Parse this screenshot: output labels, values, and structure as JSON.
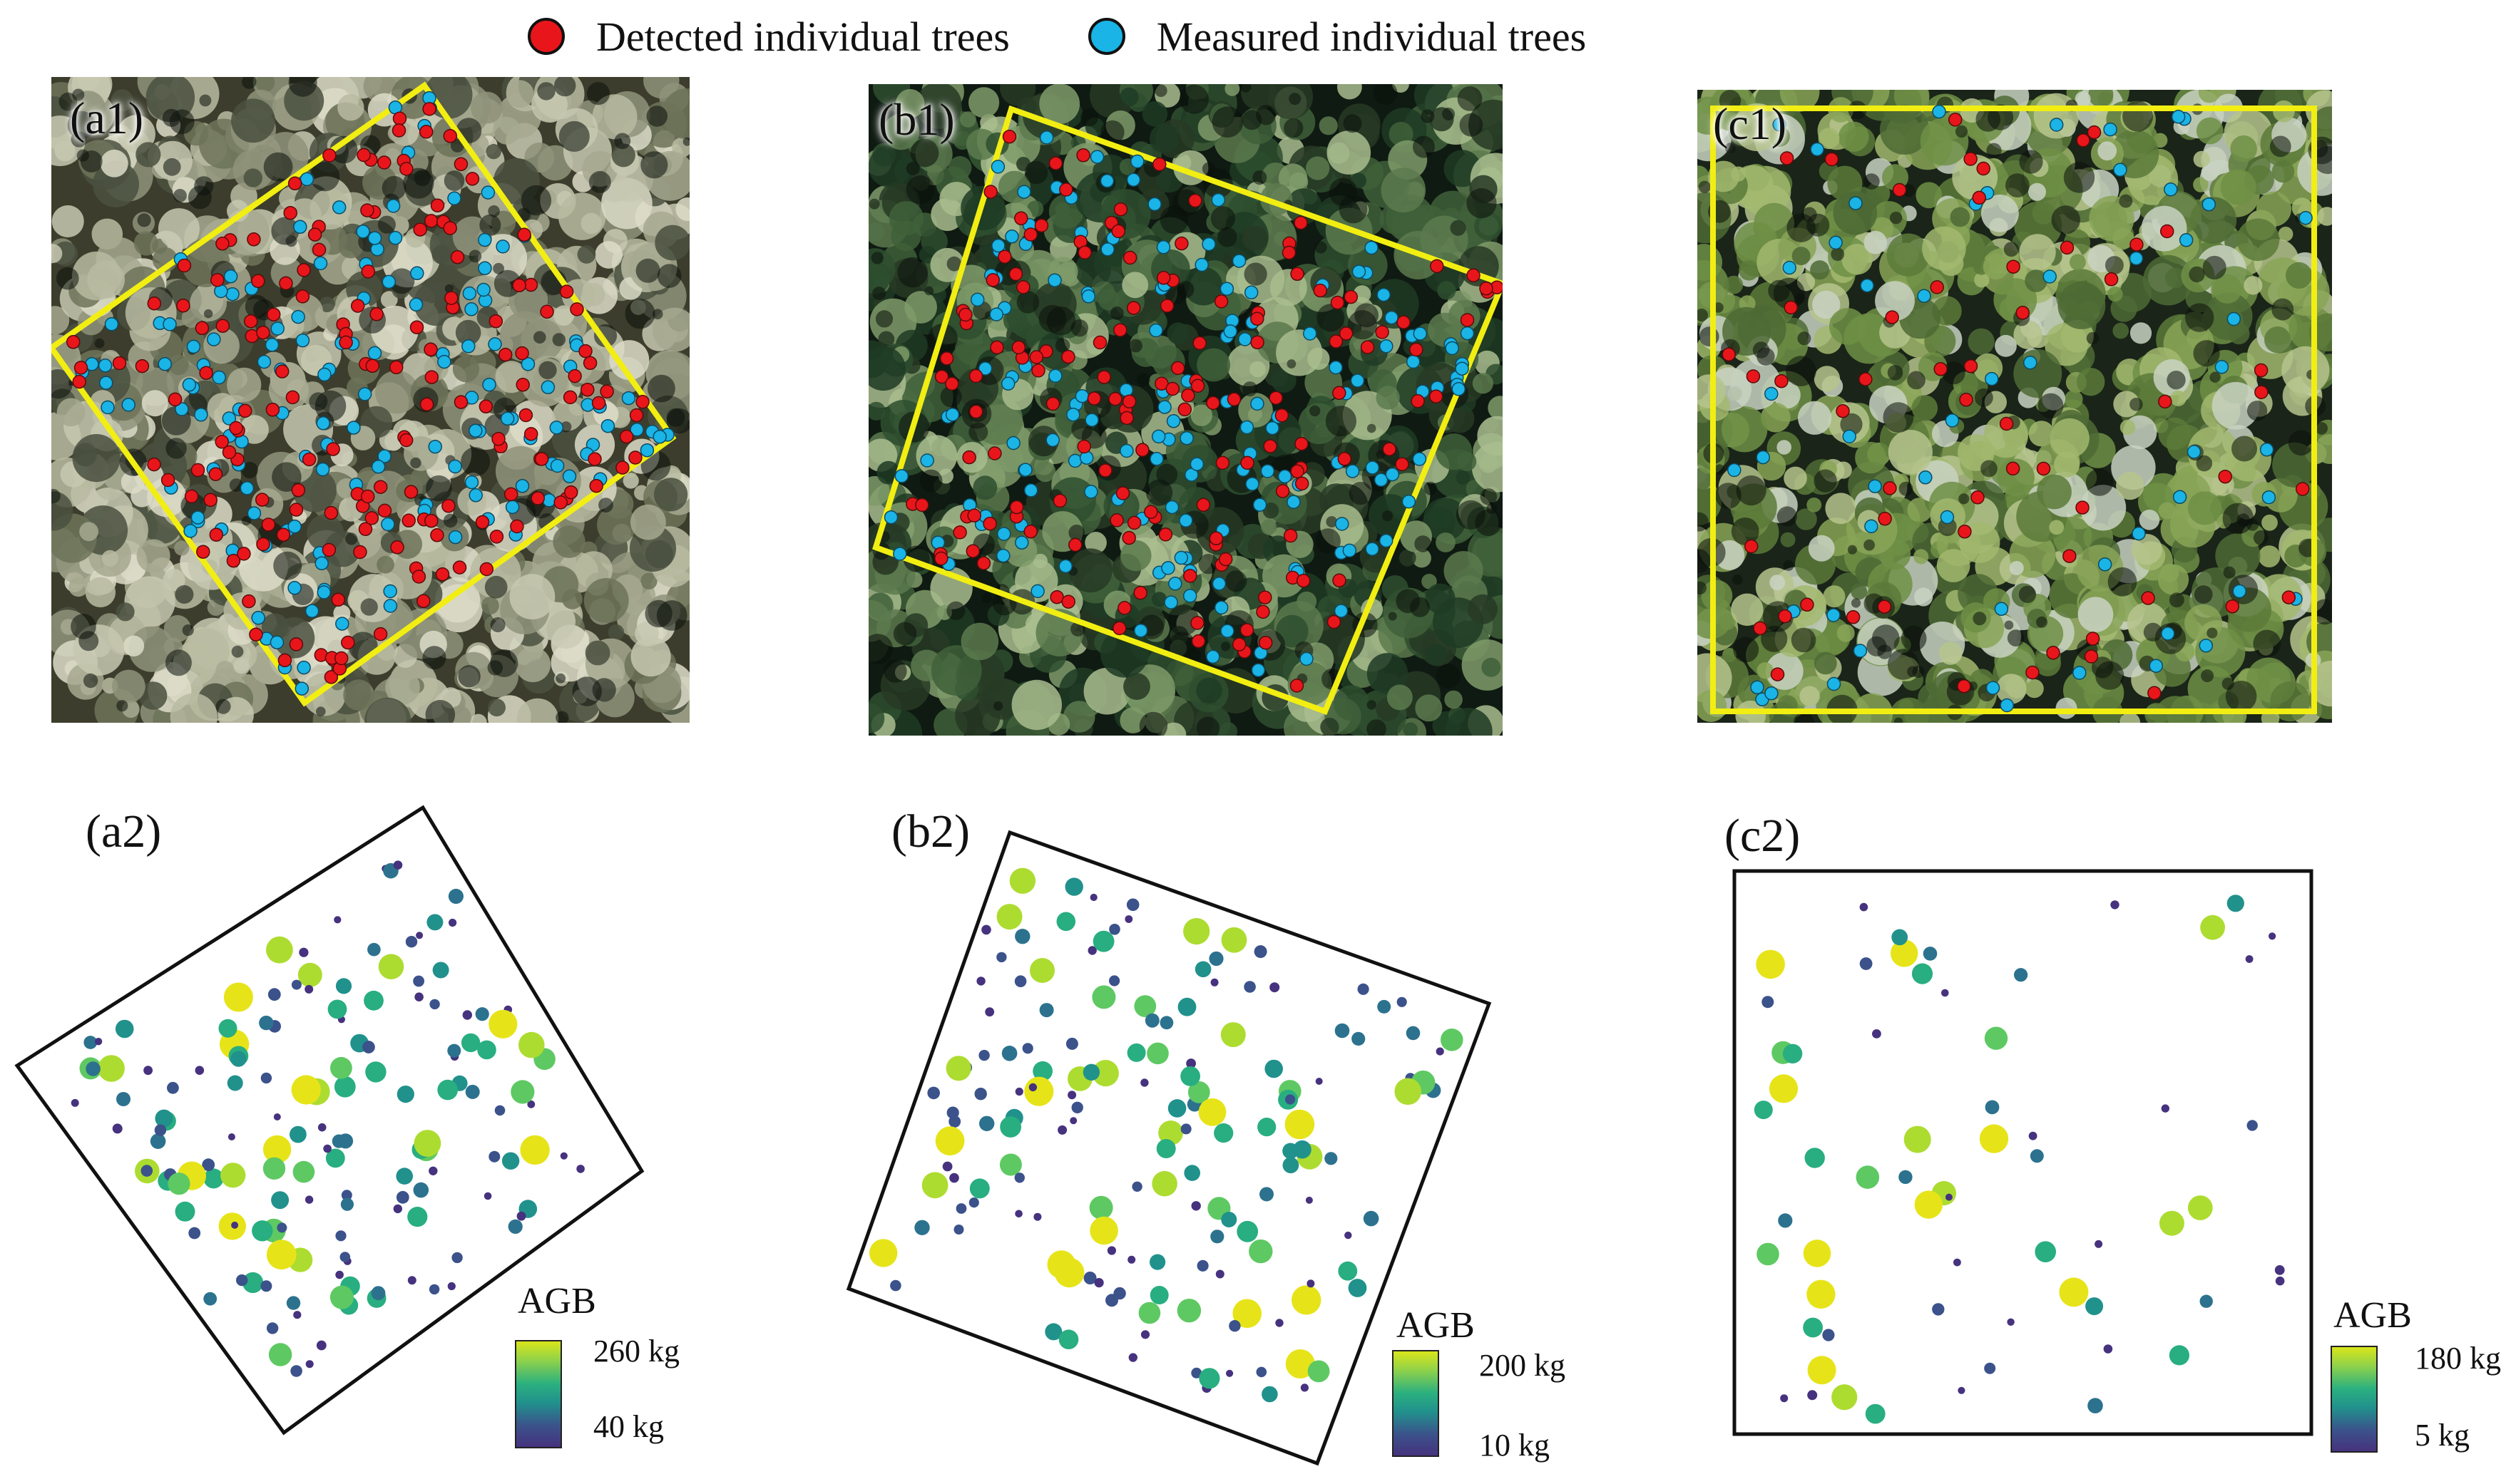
{
  "legend": {
    "detected": {
      "label": "Detected individual trees",
      "color": "#e8161b"
    },
    "measured": {
      "label": "Measured individual trees",
      "color": "#1ab4e6"
    }
  },
  "panels": {
    "a1": {
      "tag": "(a1)"
    },
    "b1": {
      "tag": "(b1)"
    },
    "c1": {
      "tag": "(c1)"
    },
    "a2": {
      "tag": "(a2)",
      "colorbar": {
        "title": "AGB",
        "max": "260 kg",
        "min": "40 kg"
      }
    },
    "b2": {
      "tag": "(b2)",
      "colorbar": {
        "title": "AGB",
        "max": "200 kg",
        "min": "10 kg"
      }
    },
    "c2": {
      "tag": "(c2)",
      "colorbar": {
        "title": "AGB",
        "max": "180 kg",
        "min": "5 kg"
      }
    }
  },
  "colors": {
    "plot_outline": "#f2ee12",
    "viridis_low": "#46327e",
    "viridis_mid": "#21918c",
    "viridis_high": "#e6e419"
  }
}
